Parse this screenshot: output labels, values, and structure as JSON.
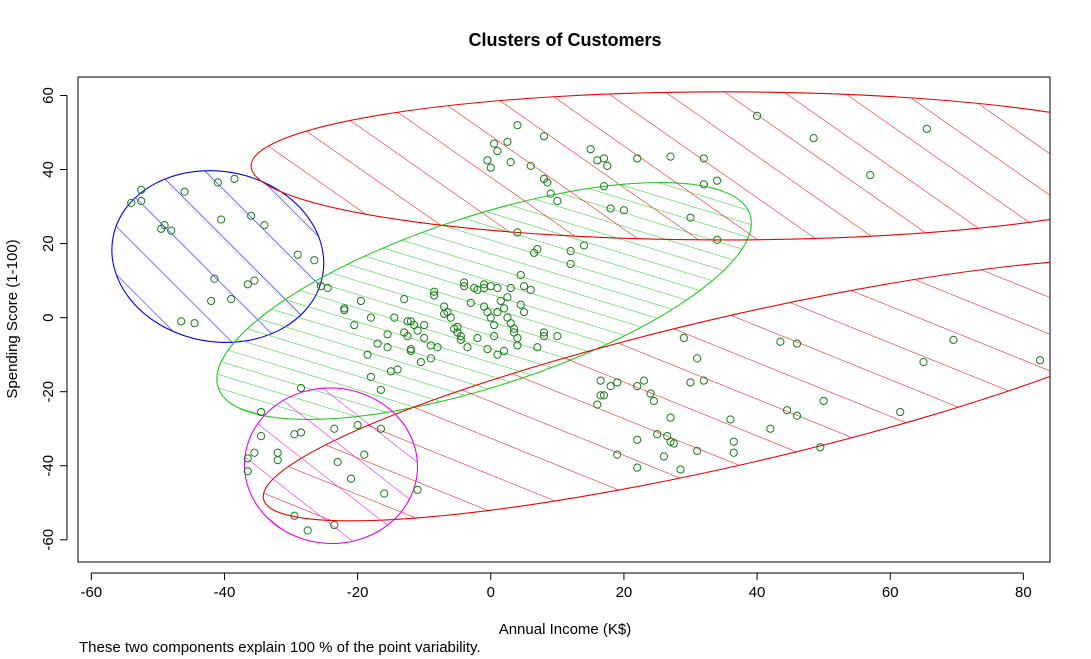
{
  "chart_data": {
    "type": "scatter",
    "title": "Clusters of Customers",
    "xlabel": "Annual Income (K$)",
    "ylabel": "Spending Score (1-100)",
    "caption": "These two components explain 100 % of the point variability.",
    "xlim": [
      -62,
      84
    ],
    "ylim": [
      -66,
      65
    ],
    "xticks": [
      -60,
      -40,
      -20,
      0,
      20,
      40,
      60,
      80
    ],
    "yticks": [
      -60,
      -40,
      -20,
      0,
      20,
      40,
      60
    ],
    "grid": false,
    "point_color": "#1a7a1a",
    "clusters": [
      {
        "color": "#0000ee",
        "ellipse": {
          "cx": -41,
          "cy": 16.5,
          "rx": 16,
          "ry": 23,
          "angle": -10
        },
        "hatch": "diagonal"
      },
      {
        "color": "#22cc22",
        "ellipse": {
          "cx": -1,
          "cy": 4.5,
          "rx": 42,
          "ry": 23,
          "angle": 18
        },
        "hatch": "diagonal-dense"
      },
      {
        "color": "#ee0000",
        "ellipse": {
          "cx": 35,
          "cy": 41,
          "rx": 71,
          "ry": 20,
          "angle": 0
        },
        "hatch": "diagonal"
      },
      {
        "color": "#ee0000",
        "ellipse": {
          "cx": 37,
          "cy": -19.5,
          "rx": 73,
          "ry": 20,
          "angle": 13
        },
        "hatch": "diagonal"
      },
      {
        "color": "#ee00ee",
        "ellipse": {
          "cx": -24,
          "cy": -40,
          "rx": 13,
          "ry": 21,
          "angle": -3
        },
        "hatch": "diagonal"
      }
    ],
    "points": [
      [
        -54,
        31
      ],
      [
        -52.5,
        34.5
      ],
      [
        -52.5,
        31.5
      ],
      [
        -49,
        25
      ],
      [
        -49.5,
        24
      ],
      [
        -48,
        23.5
      ],
      [
        -46,
        34
      ],
      [
        -41,
        36.5
      ],
      [
        -38.5,
        37.5
      ],
      [
        -40.5,
        26.5
      ],
      [
        -36,
        27.5
      ],
      [
        -34,
        25
      ],
      [
        -41.5,
        10.5
      ],
      [
        -35.5,
        10
      ],
      [
        -36.5,
        9
      ],
      [
        -39,
        5
      ],
      [
        -42,
        4.5
      ],
      [
        -46.5,
        -1
      ],
      [
        -44.5,
        -1.5
      ],
      [
        -29,
        17
      ],
      [
        -26.5,
        15.5
      ],
      [
        -25.5,
        8.5
      ],
      [
        -24.5,
        8
      ],
      [
        4,
        52
      ],
      [
        8,
        49
      ],
      [
        -0.5,
        42.5
      ],
      [
        0,
        40.5
      ],
      [
        0.5,
        47
      ],
      [
        1,
        45
      ],
      [
        2.5,
        47.5
      ],
      [
        3,
        42
      ],
      [
        6,
        41
      ],
      [
        8,
        37.5
      ],
      [
        8.5,
        36.5
      ],
      [
        9,
        33.5
      ],
      [
        10,
        31.5
      ],
      [
        15,
        45.5
      ],
      [
        16,
        42.5
      ],
      [
        17,
        43
      ],
      [
        17,
        35.5
      ],
      [
        17.5,
        41
      ],
      [
        18,
        29.5
      ],
      [
        20,
        29
      ],
      [
        22,
        43
      ],
      [
        27,
        43.5
      ],
      [
        30,
        27
      ],
      [
        32,
        43
      ],
      [
        32,
        36
      ],
      [
        34,
        37
      ],
      [
        34,
        21
      ],
      [
        40,
        54.5
      ],
      [
        48.5,
        48.5
      ],
      [
        57,
        38.5
      ],
      [
        65.5,
        51
      ],
      [
        -22,
        2.5
      ],
      [
        -22,
        2
      ],
      [
        -20.5,
        -2
      ],
      [
        -19.5,
        4.5
      ],
      [
        -18.5,
        -10
      ],
      [
        -18,
        0
      ],
      [
        -18,
        -16
      ],
      [
        -17,
        -7
      ],
      [
        -16.5,
        -19.5
      ],
      [
        -15.5,
        -4.5
      ],
      [
        -15.5,
        -8
      ],
      [
        -15,
        -14.5
      ],
      [
        -14.5,
        0
      ],
      [
        -14,
        -14
      ],
      [
        -13,
        -4
      ],
      [
        -13,
        5
      ],
      [
        -12.5,
        -1
      ],
      [
        -12.5,
        -5
      ],
      [
        -12,
        -8.5
      ],
      [
        -12,
        -1
      ],
      [
        -12,
        -9
      ],
      [
        -11.5,
        -2
      ],
      [
        -11,
        -3.5
      ],
      [
        -10,
        -5.5
      ],
      [
        -10.5,
        -12
      ],
      [
        -10,
        -2
      ],
      [
        -9,
        -7.5
      ],
      [
        -9,
        -11
      ],
      [
        -8.5,
        7
      ],
      [
        -8.5,
        6
      ],
      [
        -8,
        -8
      ],
      [
        -7,
        1
      ],
      [
        -7,
        3
      ],
      [
        -6.5,
        1.5
      ],
      [
        -6,
        0
      ],
      [
        -5.5,
        -3
      ],
      [
        -5,
        -2.5
      ],
      [
        -5,
        -4
      ],
      [
        -4.5,
        -5
      ],
      [
        -4.5,
        -6
      ],
      [
        -4,
        8.5
      ],
      [
        -4,
        9.5
      ],
      [
        -3.5,
        -8
      ],
      [
        -3,
        4
      ],
      [
        -2.5,
        8
      ],
      [
        -2,
        7.5
      ],
      [
        -2,
        -5.5
      ],
      [
        -1,
        9
      ],
      [
        -1,
        8
      ],
      [
        -1,
        3
      ],
      [
        -0.5,
        -8.5
      ],
      [
        -0.5,
        1.5
      ],
      [
        0,
        0
      ],
      [
        0,
        8.5
      ],
      [
        0.5,
        -5
      ],
      [
        0.5,
        -2
      ],
      [
        1,
        1.5
      ],
      [
        1,
        -10
      ],
      [
        1,
        8
      ],
      [
        1.5,
        4.5
      ],
      [
        2,
        2.5
      ],
      [
        2,
        -9
      ],
      [
        2.5,
        5.5
      ],
      [
        2.5,
        0
      ],
      [
        3,
        8
      ],
      [
        3,
        -1.5
      ],
      [
        3.5,
        -4
      ],
      [
        3.5,
        -3
      ],
      [
        4,
        -5.5
      ],
      [
        4,
        23
      ],
      [
        4,
        -7.5
      ],
      [
        4.5,
        3.5
      ],
      [
        4.5,
        11.5
      ],
      [
        5,
        1.5
      ],
      [
        5,
        8.5
      ],
      [
        6,
        7.5
      ],
      [
        6.5,
        17.5
      ],
      [
        7,
        -8
      ],
      [
        7,
        18.5
      ],
      [
        8,
        -4
      ],
      [
        8,
        -5
      ],
      [
        10,
        -5
      ],
      [
        12,
        14.5
      ],
      [
        12,
        18
      ],
      [
        14,
        19.5
      ],
      [
        29,
        -5.5
      ],
      [
        31,
        -11
      ],
      [
        16.5,
        -17
      ],
      [
        17,
        -21
      ],
      [
        16.5,
        -21
      ],
      [
        16,
        -23.5
      ],
      [
        18,
        -18.5
      ],
      [
        19,
        -17.5
      ],
      [
        22,
        -18.5
      ],
      [
        23,
        -17
      ],
      [
        24,
        -20.5
      ],
      [
        24.5,
        -22.5
      ],
      [
        27,
        -27
      ],
      [
        30,
        -17.5
      ],
      [
        32,
        -17
      ],
      [
        36,
        -27.5
      ],
      [
        22,
        -33
      ],
      [
        25,
        -31.5
      ],
      [
        26.5,
        -32
      ],
      [
        27,
        -33.5
      ],
      [
        27.5,
        -34
      ],
      [
        26,
        -37.5
      ],
      [
        28.5,
        -41
      ],
      [
        22,
        -40.5
      ],
      [
        19,
        -37
      ],
      [
        31,
        -36
      ],
      [
        36.5,
        -33.5
      ],
      [
        36.5,
        -36.5
      ],
      [
        42,
        -30
      ],
      [
        44.5,
        -25
      ],
      [
        46,
        -26.5
      ],
      [
        43.5,
        -6.5
      ],
      [
        46,
        -7
      ],
      [
        50,
        -22.5
      ],
      [
        49.5,
        -35
      ],
      [
        61.5,
        -25.5
      ],
      [
        65,
        -12
      ],
      [
        69.5,
        -6
      ],
      [
        82.5,
        -11.5
      ],
      [
        -28.5,
        -19
      ],
      [
        -34.5,
        -25.5
      ],
      [
        -34.5,
        -32
      ],
      [
        -35.5,
        -36.5
      ],
      [
        -36.5,
        -38
      ],
      [
        -32,
        -36.5
      ],
      [
        -32,
        -38.5
      ],
      [
        -29.5,
        -31.5
      ],
      [
        -28.5,
        -31
      ],
      [
        -23.5,
        -30
      ],
      [
        -20,
        -29
      ],
      [
        -16.5,
        -30
      ],
      [
        -23,
        -39
      ],
      [
        -19,
        -37
      ],
      [
        -21,
        -43.5
      ],
      [
        -16,
        -47.5
      ],
      [
        -11,
        -46.5
      ],
      [
        -29.5,
        -53.5
      ],
      [
        -36.5,
        -41.5
      ],
      [
        -27.5,
        -57.5
      ],
      [
        -23.5,
        -56
      ]
    ]
  }
}
